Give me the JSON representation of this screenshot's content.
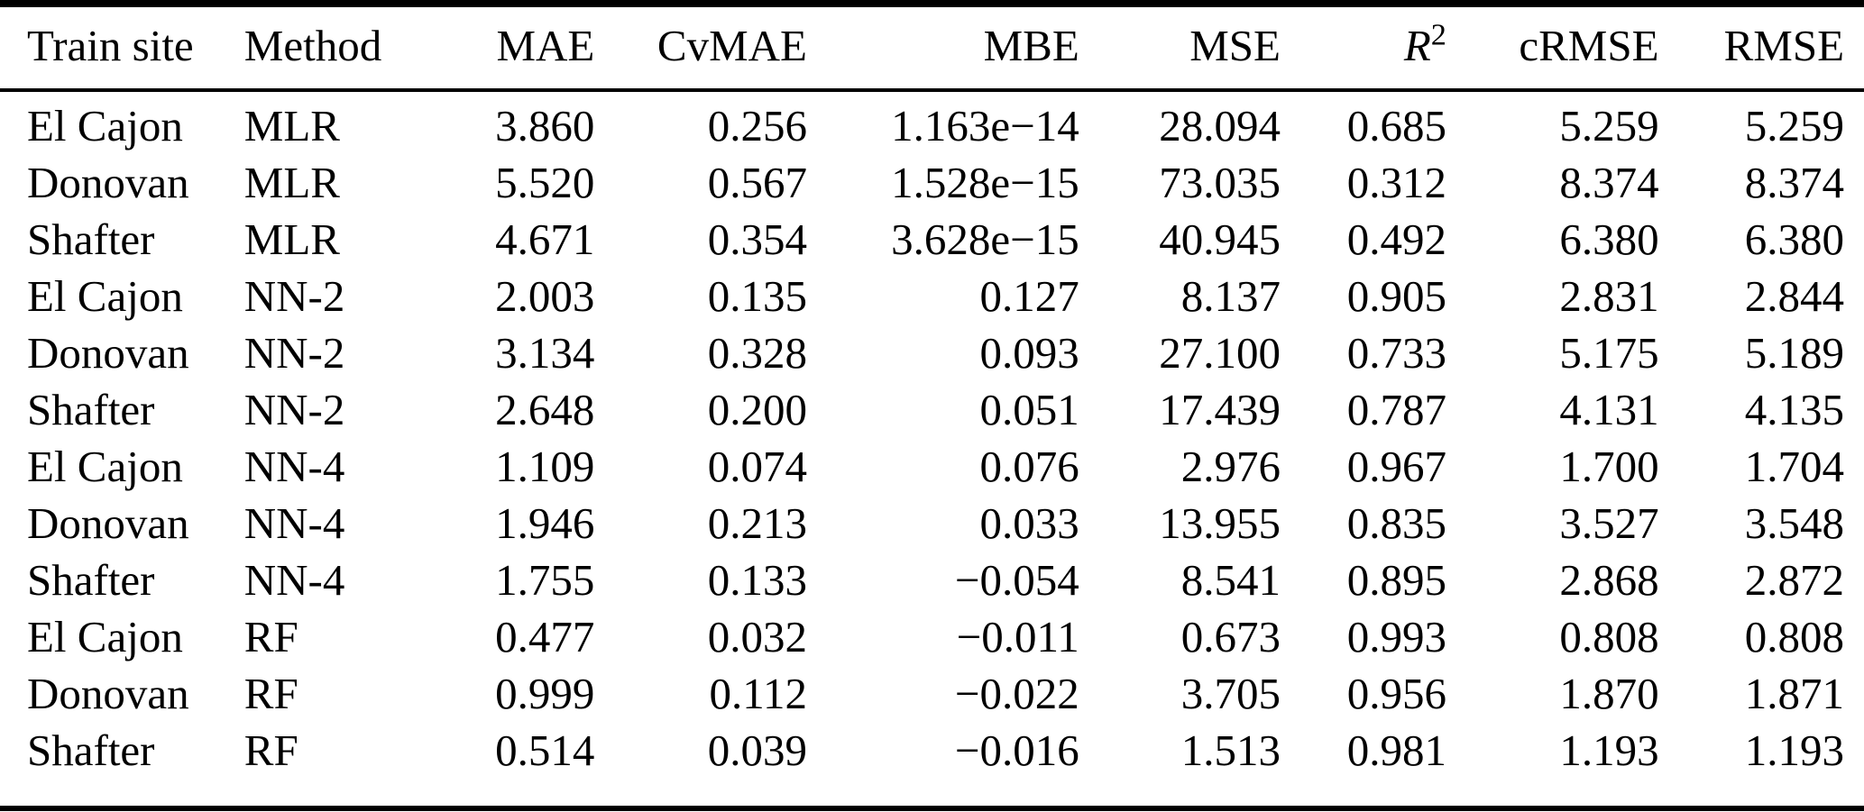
{
  "figure": {
    "background": "#ffffff",
    "text_color": "#000000",
    "rule_color": "#000000"
  },
  "table": {
    "columns": [
      {
        "label": "Train site",
        "align": "left"
      },
      {
        "label": "Method",
        "align": "left"
      },
      {
        "label": "MAE",
        "align": "right"
      },
      {
        "label": "CvMAE",
        "align": "right"
      },
      {
        "label": "MBE",
        "align": "right"
      },
      {
        "label": "MSE",
        "align": "right"
      },
      {
        "label": "R",
        "sup": "2",
        "align": "right"
      },
      {
        "label": "cRMSE",
        "align": "right"
      },
      {
        "label": "RMSE",
        "align": "right"
      }
    ]
  },
  "chart_data": {
    "type": "table",
    "columns": [
      "Train site",
      "Method",
      "MAE",
      "CvMAE",
      "MBE",
      "MSE",
      "R^2",
      "cRMSE",
      "RMSE"
    ],
    "rows": [
      [
        "El Cajon",
        "MLR",
        "3.860",
        "0.256",
        "1.163e−14",
        "28.094",
        "0.685",
        "5.259",
        "5.259"
      ],
      [
        "Donovan",
        "MLR",
        "5.520",
        "0.567",
        "1.528e−15",
        "73.035",
        "0.312",
        "8.374",
        "8.374"
      ],
      [
        "Shafter",
        "MLR",
        "4.671",
        "0.354",
        "3.628e−15",
        "40.945",
        "0.492",
        "6.380",
        "6.380"
      ],
      [
        "El Cajon",
        "NN-2",
        "2.003",
        "0.135",
        "0.127",
        "8.137",
        "0.905",
        "2.831",
        "2.844"
      ],
      [
        "Donovan",
        "NN-2",
        "3.134",
        "0.328",
        "0.093",
        "27.100",
        "0.733",
        "5.175",
        "5.189"
      ],
      [
        "Shafter",
        "NN-2",
        "2.648",
        "0.200",
        "0.051",
        "17.439",
        "0.787",
        "4.131",
        "4.135"
      ],
      [
        "El Cajon",
        "NN-4",
        "1.109",
        "0.074",
        "0.076",
        "2.976",
        "0.967",
        "1.700",
        "1.704"
      ],
      [
        "Donovan",
        "NN-4",
        "1.946",
        "0.213",
        "0.033",
        "13.955",
        "0.835",
        "3.527",
        "3.548"
      ],
      [
        "Shafter",
        "NN-4",
        "1.755",
        "0.133",
        "−0.054",
        "8.541",
        "0.895",
        "2.868",
        "2.872"
      ],
      [
        "El Cajon",
        "RF",
        "0.477",
        "0.032",
        "−0.011",
        "0.673",
        "0.993",
        "0.808",
        "0.808"
      ],
      [
        "Donovan",
        "RF",
        "0.999",
        "0.112",
        "−0.022",
        "3.705",
        "0.956",
        "1.870",
        "1.871"
      ],
      [
        "Shafter",
        "RF",
        "0.514",
        "0.039",
        "−0.016",
        "1.513",
        "0.981",
        "1.193",
        "1.193"
      ]
    ]
  }
}
